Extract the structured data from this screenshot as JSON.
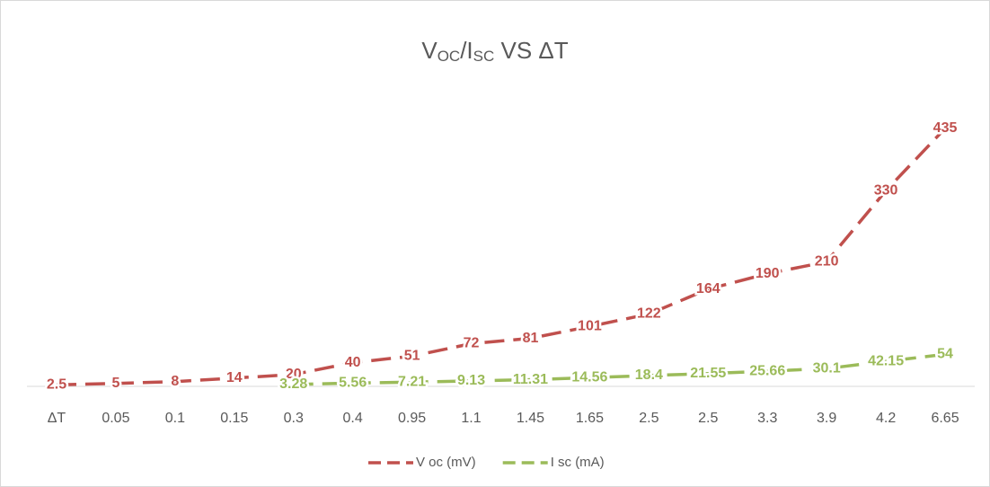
{
  "chart_data": {
    "type": "line",
    "title": [
      {
        "text": "V"
      },
      {
        "text": "OC",
        "sub": true
      },
      {
        "text": "/I"
      },
      {
        "text": "SC",
        "sub": true
      },
      {
        "text": " VS ΔT"
      }
    ],
    "categories": [
      "ΔT",
      "0.05",
      "0.1",
      "0.15",
      "0.3",
      "0.4",
      "0.95",
      "1.1",
      "1.45",
      "1.65",
      "2.5",
      "2.5",
      "3.3",
      "3.9",
      "4.2",
      "6.65"
    ],
    "series": [
      {
        "name": "V oc (mV)",
        "color": "#c0504d",
        "values": [
          2.5,
          5,
          8,
          14,
          20,
          40,
          51,
          72,
          81,
          101,
          122,
          164,
          190,
          210,
          330,
          435
        ]
      },
      {
        "name": "I sc (mA)",
        "color": "#9bbb59",
        "values": [
          null,
          null,
          null,
          null,
          3.28,
          5.56,
          7.21,
          9.13,
          11.31,
          14.56,
          18.4,
          21.55,
          25.66,
          30.1,
          42.15,
          54
        ]
      }
    ],
    "ylim": [
      0,
      500
    ],
    "legend": "bottom",
    "dashed": true
  }
}
